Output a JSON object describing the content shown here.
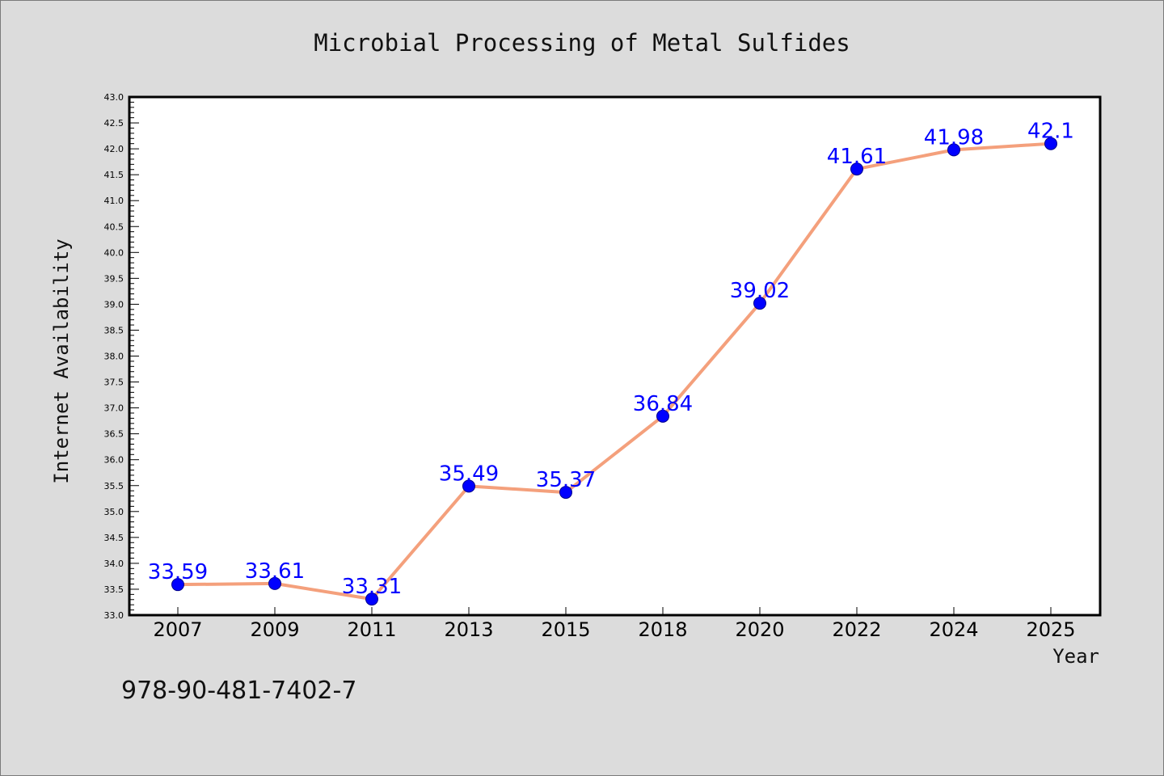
{
  "chart_data": {
    "type": "line",
    "title": "Microbial Processing of Metal Sulfides",
    "xlabel": "Year",
    "ylabel": "Internet Availability",
    "categories": [
      "2007",
      "2009",
      "2011",
      "2013",
      "2015",
      "2018",
      "2020",
      "2022",
      "2024",
      "2025"
    ],
    "series": [
      {
        "values": [
          33.59,
          33.61,
          33.31,
          35.49,
          35.37,
          36.84,
          39.02,
          41.61,
          41.98,
          42.1
        ],
        "data_labels": [
          "33.59",
          "33.61",
          "33.31",
          "35.49",
          "35.37",
          "36.84",
          "39.02",
          "41.61",
          "41.98",
          "42.1"
        ]
      }
    ],
    "ylim": [
      33.0,
      43.0
    ],
    "yticks": [
      "33.0",
      "33.5",
      "34.0",
      "34.5",
      "35.0",
      "35.5",
      "36.0",
      "36.5",
      "37.0",
      "37.5",
      "38.0",
      "38.5",
      "39.0",
      "39.5",
      "40.0",
      "40.5",
      "41.0",
      "41.5",
      "42.0",
      "42.5",
      "43.0"
    ],
    "grid": false,
    "colors": {
      "line": "#f4a07c",
      "marker": "#0000ff",
      "data_label": "#0000ff",
      "plot_background": "#ffffff",
      "figure_background": "#dcdcdc"
    }
  },
  "footer_code": "978-90-481-7402-7"
}
